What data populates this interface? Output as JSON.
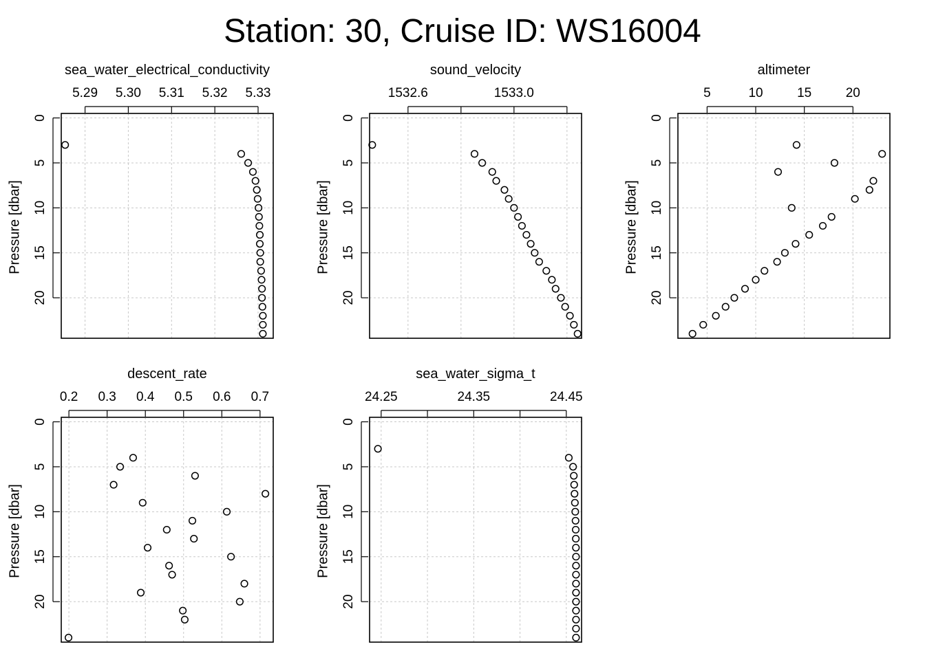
{
  "title": "Station: 30, Cruise ID: WS16004",
  "chart_data": [
    {
      "type": "scatter",
      "title": "sea_water_electrical_conductivity",
      "ylabel": "Pressure [dbar]",
      "xticks": [
        5.29,
        5.3,
        5.31,
        5.32,
        5.33
      ],
      "xtick_labels": [
        "5.29",
        "5.30",
        "5.31",
        "5.32",
        "5.33"
      ],
      "xlim": [
        5.2845,
        5.3335
      ],
      "yticks": [
        0,
        5,
        10,
        15,
        20
      ],
      "ytick_labels": [
        "0",
        "5",
        "10",
        "15",
        "20"
      ],
      "ylim": [
        24.5,
        -0.5
      ],
      "y_reversed": true,
      "grid": true,
      "points": [
        [
          5.2854,
          3
        ],
        [
          5.3261,
          4
        ],
        [
          5.3277,
          5
        ],
        [
          5.3288,
          6
        ],
        [
          5.3294,
          7
        ],
        [
          5.3297,
          8
        ],
        [
          5.3299,
          9
        ],
        [
          5.3301,
          10
        ],
        [
          5.3302,
          11
        ],
        [
          5.3303,
          12
        ],
        [
          5.3304,
          13
        ],
        [
          5.3304,
          14
        ],
        [
          5.3305,
          15
        ],
        [
          5.3305,
          16
        ],
        [
          5.3307,
          17
        ],
        [
          5.3308,
          18
        ],
        [
          5.3309,
          19
        ],
        [
          5.3309,
          20
        ],
        [
          5.331,
          21
        ],
        [
          5.3311,
          22
        ],
        [
          5.3311,
          23
        ],
        [
          5.3311,
          24
        ]
      ]
    },
    {
      "type": "scatter",
      "title": "sound_velocity",
      "ylabel": "Pressure [dbar]",
      "xticks": [
        1532.6,
        1532.8,
        1533.0,
        1533.2
      ],
      "xtick_labels": [
        "1532.6",
        "",
        "1533.0",
        ""
      ],
      "xlim": [
        1532.455,
        1533.255
      ],
      "yticks": [
        0,
        5,
        10,
        15,
        20
      ],
      "ytick_labels": [
        "0",
        "5",
        "10",
        "15",
        "20"
      ],
      "ylim": [
        24.5,
        -0.5
      ],
      "y_reversed": true,
      "grid": true,
      "points": [
        [
          1532.465,
          3
        ],
        [
          1532.851,
          4
        ],
        [
          1532.88,
          5
        ],
        [
          1532.918,
          6
        ],
        [
          1532.933,
          7
        ],
        [
          1532.964,
          8
        ],
        [
          1532.98,
          9
        ],
        [
          1533.0,
          10
        ],
        [
          1533.015,
          11
        ],
        [
          1533.03,
          12
        ],
        [
          1533.047,
          13
        ],
        [
          1533.063,
          14
        ],
        [
          1533.078,
          15
        ],
        [
          1533.095,
          16
        ],
        [
          1533.122,
          17
        ],
        [
          1533.143,
          18
        ],
        [
          1533.157,
          19
        ],
        [
          1533.177,
          20
        ],
        [
          1533.193,
          21
        ],
        [
          1533.211,
          22
        ],
        [
          1533.226,
          23
        ],
        [
          1533.24,
          24
        ]
      ]
    },
    {
      "type": "scatter",
      "title": "altimeter",
      "ylabel": "Pressure [dbar]",
      "xticks": [
        5,
        10,
        15,
        20
      ],
      "xtick_labels": [
        "5",
        "10",
        "15",
        "20"
      ],
      "xlim": [
        2.0,
        23.8
      ],
      "yticks": [
        0,
        5,
        10,
        15,
        20
      ],
      "ytick_labels": [
        "0",
        "5",
        "10",
        "15",
        "20"
      ],
      "ylim": [
        24.5,
        -0.5
      ],
      "y_reversed": true,
      "grid": true,
      "points": [
        [
          14.2,
          3
        ],
        [
          23.0,
          4
        ],
        [
          18.1,
          5
        ],
        [
          12.3,
          6
        ],
        [
          22.1,
          7
        ],
        [
          21.7,
          8
        ],
        [
          20.2,
          9
        ],
        [
          13.7,
          10
        ],
        [
          17.8,
          11
        ],
        [
          16.9,
          12
        ],
        [
          15.5,
          13
        ],
        [
          14.1,
          14
        ],
        [
          13.0,
          15
        ],
        [
          12.2,
          16
        ],
        [
          10.9,
          17
        ],
        [
          10.0,
          18
        ],
        [
          8.9,
          19
        ],
        [
          7.8,
          20
        ],
        [
          6.9,
          21
        ],
        [
          5.9,
          22
        ],
        [
          4.6,
          23
        ],
        [
          3.5,
          24
        ]
      ]
    },
    {
      "type": "scatter",
      "title": "descent_rate",
      "ylabel": "Pressure [dbar]",
      "xticks": [
        0.2,
        0.3,
        0.4,
        0.5,
        0.6,
        0.7
      ],
      "xtick_labels": [
        "0.2",
        "0.3",
        "0.4",
        "0.5",
        "0.6",
        "0.7"
      ],
      "xlim": [
        0.18,
        0.7345
      ],
      "yticks": [
        0,
        5,
        10,
        15,
        20
      ],
      "ytick_labels": [
        "0",
        "5",
        "10",
        "15",
        "20"
      ],
      "ylim": [
        24.5,
        -0.5
      ],
      "y_reversed": true,
      "grid": true,
      "points": [
        [
          0.368,
          4
        ],
        [
          0.334,
          5
        ],
        [
          0.53,
          6
        ],
        [
          0.317,
          7
        ],
        [
          0.714,
          8
        ],
        [
          0.393,
          9
        ],
        [
          0.613,
          10
        ],
        [
          0.523,
          11
        ],
        [
          0.456,
          12
        ],
        [
          0.527,
          13
        ],
        [
          0.406,
          14
        ],
        [
          0.624,
          15
        ],
        [
          0.462,
          16
        ],
        [
          0.47,
          17
        ],
        [
          0.659,
          18
        ],
        [
          0.388,
          19
        ],
        [
          0.647,
          20
        ],
        [
          0.498,
          21
        ],
        [
          0.503,
          22
        ],
        [
          0.199,
          24
        ]
      ]
    },
    {
      "type": "scatter",
      "title": "sea_water_sigma_t",
      "ylabel": "Pressure [dbar]",
      "xticks": [
        24.25,
        24.3,
        24.35,
        24.4,
        24.45
      ],
      "xtick_labels": [
        "24.25",
        "",
        "24.35",
        "",
        "24.45"
      ],
      "xlim": [
        24.2375,
        24.4665
      ],
      "yticks": [
        0,
        5,
        10,
        15,
        20
      ],
      "ytick_labels": [
        "0",
        "5",
        "10",
        "15",
        "20"
      ],
      "ylim": [
        24.5,
        -0.5
      ],
      "y_reversed": true,
      "grid": true,
      "points": [
        [
          24.2465,
          3
        ],
        [
          24.4527,
          4
        ],
        [
          24.4573,
          5
        ],
        [
          24.4581,
          6
        ],
        [
          24.4585,
          7
        ],
        [
          24.4589,
          8
        ],
        [
          24.4593,
          9
        ],
        [
          24.4597,
          10
        ],
        [
          24.46,
          11
        ],
        [
          24.4602,
          12
        ],
        [
          24.4603,
          13
        ],
        [
          24.4604,
          14
        ],
        [
          24.4605,
          15
        ],
        [
          24.4605,
          16
        ],
        [
          24.4605,
          17
        ],
        [
          24.4605,
          18
        ],
        [
          24.4605,
          19
        ],
        [
          24.4605,
          20
        ],
        [
          24.4605,
          21
        ],
        [
          24.4605,
          22
        ],
        [
          24.4605,
          23
        ],
        [
          24.4605,
          24
        ]
      ]
    }
  ]
}
